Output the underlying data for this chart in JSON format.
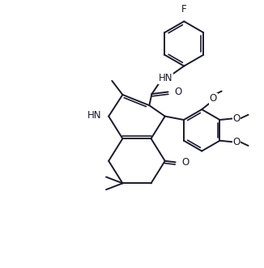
{
  "bg": "#ffffff",
  "lc": "#1a1a2e",
  "lw": 1.4,
  "fs": 8.5,
  "figsize": [
    3.26,
    3.31
  ],
  "dpi": 100,
  "xlim": [
    0,
    10
  ],
  "ylim": [
    0,
    10.2
  ]
}
